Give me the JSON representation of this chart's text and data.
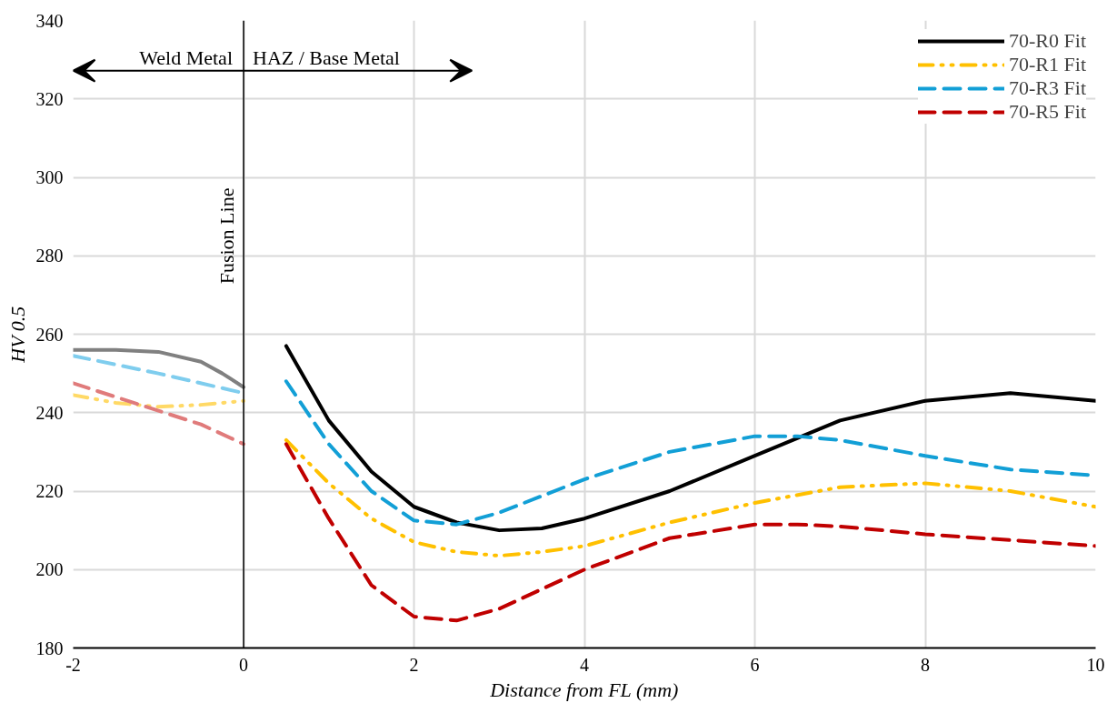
{
  "chart_data": {
    "type": "line",
    "xlabel": "Distance from FL (mm)",
    "ylabel": "HV 0.5",
    "xlim": [
      -2,
      10
    ],
    "ylim": [
      180,
      340
    ],
    "xticks": [
      -2,
      0,
      2,
      4,
      6,
      8,
      10
    ],
    "yticks": [
      180,
      200,
      220,
      240,
      260,
      280,
      300,
      320,
      340
    ],
    "grid": true,
    "legend": "top right",
    "marker": "none",
    "ref_lines": [
      {
        "axis": "x",
        "value": 0,
        "label": "Fusion Line",
        "color": "#000000"
      }
    ],
    "annotations": [
      "Weld Metal",
      "HAZ / Base Metal"
    ],
    "series": [
      {
        "name": "70-R0 Fit",
        "color": "#000000",
        "line_style": "solid",
        "x": [
          0.5,
          1,
          1.5,
          2,
          2.5,
          3,
          3.5,
          4,
          5,
          6,
          7,
          8,
          9,
          10
        ],
        "values": [
          257,
          238,
          225,
          216,
          212,
          210,
          210.5,
          213,
          220,
          229,
          238,
          243,
          245,
          243
        ]
      },
      {
        "name": "70-R1 Fit",
        "color": "#ffc000",
        "line_style": "dashdot",
        "x": [
          0.5,
          1,
          1.5,
          2,
          2.5,
          3,
          3.5,
          4,
          5,
          6,
          7,
          8,
          9,
          10
        ],
        "values": [
          233,
          222,
          213,
          207,
          204.5,
          203.5,
          204.5,
          206,
          212,
          217,
          221,
          222,
          220,
          216
        ]
      },
      {
        "name": "70-R3 Fit",
        "color": "#129fd6",
        "line_style": "dashed",
        "x": [
          0.5,
          1,
          1.5,
          2,
          2.5,
          3,
          4,
          5,
          6,
          6.5,
          7,
          8,
          9,
          10
        ],
        "values": [
          248,
          232,
          220,
          212.5,
          211.5,
          214.5,
          223,
          230,
          234,
          234,
          233,
          229,
          225.5,
          224
        ]
      },
      {
        "name": "70-R5 Fit",
        "color": "#c00000",
        "line_style": "dashed",
        "x": [
          0.5,
          1,
          1.5,
          2,
          2.5,
          3,
          4,
          5,
          6,
          6.5,
          7,
          8,
          9,
          10
        ],
        "values": [
          232,
          213,
          196,
          188,
          187,
          190,
          200,
          208,
          211.5,
          211.5,
          211,
          209,
          207.5,
          206
        ]
      },
      {
        "color": "#808080",
        "line_style": "solid",
        "x": [
          -2,
          -1.5,
          -1,
          -0.5,
          -0.25,
          0
        ],
        "values": [
          256,
          256,
          255.5,
          253,
          250,
          246.5
        ]
      },
      {
        "color": "#ffd966",
        "line_style": "dashdot",
        "x": [
          -2,
          -1.5,
          -1,
          -0.5,
          0
        ],
        "values": [
          244.5,
          242.5,
          241.5,
          242,
          243
        ]
      },
      {
        "color": "#7fcdee",
        "line_style": "dashed",
        "x": [
          -2,
          -1,
          0
        ],
        "values": [
          254.5,
          250,
          245
        ]
      },
      {
        "color": "#e07b7b",
        "line_style": "dashed",
        "x": [
          -2,
          -1,
          -0.5,
          0
        ],
        "values": [
          247.5,
          240.5,
          237,
          232
        ]
      }
    ]
  }
}
